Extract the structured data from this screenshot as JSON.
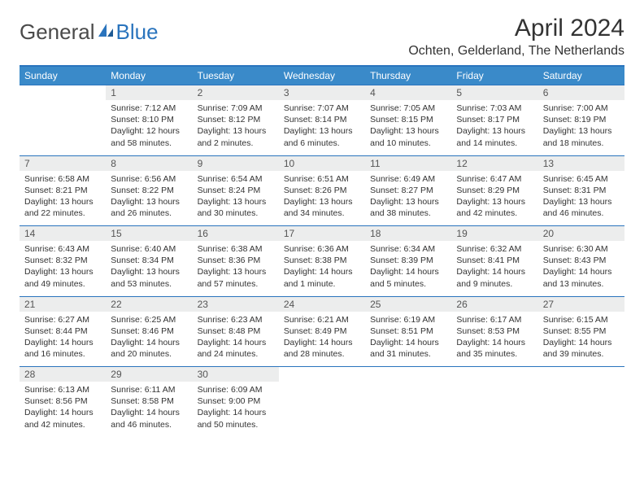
{
  "brand": {
    "part1": "General",
    "part2": "Blue"
  },
  "title": "April 2024",
  "location": "Ochten, Gelderland, The Netherlands",
  "colors": {
    "header_bg": "#3a8ac9",
    "accent": "#2a74bd",
    "daynum_bg": "#eceded",
    "text": "#333333"
  },
  "weekdays": [
    "Sunday",
    "Monday",
    "Tuesday",
    "Wednesday",
    "Thursday",
    "Friday",
    "Saturday"
  ],
  "weeks": [
    {
      "nums": [
        "",
        "1",
        "2",
        "3",
        "4",
        "5",
        "6"
      ],
      "cells": [
        null,
        {
          "sunrise": "Sunrise: 7:12 AM",
          "sunset": "Sunset: 8:10 PM",
          "day1": "Daylight: 12 hours",
          "day2": "and 58 minutes."
        },
        {
          "sunrise": "Sunrise: 7:09 AM",
          "sunset": "Sunset: 8:12 PM",
          "day1": "Daylight: 13 hours",
          "day2": "and 2 minutes."
        },
        {
          "sunrise": "Sunrise: 7:07 AM",
          "sunset": "Sunset: 8:14 PM",
          "day1": "Daylight: 13 hours",
          "day2": "and 6 minutes."
        },
        {
          "sunrise": "Sunrise: 7:05 AM",
          "sunset": "Sunset: 8:15 PM",
          "day1": "Daylight: 13 hours",
          "day2": "and 10 minutes."
        },
        {
          "sunrise": "Sunrise: 7:03 AM",
          "sunset": "Sunset: 8:17 PM",
          "day1": "Daylight: 13 hours",
          "day2": "and 14 minutes."
        },
        {
          "sunrise": "Sunrise: 7:00 AM",
          "sunset": "Sunset: 8:19 PM",
          "day1": "Daylight: 13 hours",
          "day2": "and 18 minutes."
        }
      ]
    },
    {
      "nums": [
        "7",
        "8",
        "9",
        "10",
        "11",
        "12",
        "13"
      ],
      "cells": [
        {
          "sunrise": "Sunrise: 6:58 AM",
          "sunset": "Sunset: 8:21 PM",
          "day1": "Daylight: 13 hours",
          "day2": "and 22 minutes."
        },
        {
          "sunrise": "Sunrise: 6:56 AM",
          "sunset": "Sunset: 8:22 PM",
          "day1": "Daylight: 13 hours",
          "day2": "and 26 minutes."
        },
        {
          "sunrise": "Sunrise: 6:54 AM",
          "sunset": "Sunset: 8:24 PM",
          "day1": "Daylight: 13 hours",
          "day2": "and 30 minutes."
        },
        {
          "sunrise": "Sunrise: 6:51 AM",
          "sunset": "Sunset: 8:26 PM",
          "day1": "Daylight: 13 hours",
          "day2": "and 34 minutes."
        },
        {
          "sunrise": "Sunrise: 6:49 AM",
          "sunset": "Sunset: 8:27 PM",
          "day1": "Daylight: 13 hours",
          "day2": "and 38 minutes."
        },
        {
          "sunrise": "Sunrise: 6:47 AM",
          "sunset": "Sunset: 8:29 PM",
          "day1": "Daylight: 13 hours",
          "day2": "and 42 minutes."
        },
        {
          "sunrise": "Sunrise: 6:45 AM",
          "sunset": "Sunset: 8:31 PM",
          "day1": "Daylight: 13 hours",
          "day2": "and 46 minutes."
        }
      ]
    },
    {
      "nums": [
        "14",
        "15",
        "16",
        "17",
        "18",
        "19",
        "20"
      ],
      "cells": [
        {
          "sunrise": "Sunrise: 6:43 AM",
          "sunset": "Sunset: 8:32 PM",
          "day1": "Daylight: 13 hours",
          "day2": "and 49 minutes."
        },
        {
          "sunrise": "Sunrise: 6:40 AM",
          "sunset": "Sunset: 8:34 PM",
          "day1": "Daylight: 13 hours",
          "day2": "and 53 minutes."
        },
        {
          "sunrise": "Sunrise: 6:38 AM",
          "sunset": "Sunset: 8:36 PM",
          "day1": "Daylight: 13 hours",
          "day2": "and 57 minutes."
        },
        {
          "sunrise": "Sunrise: 6:36 AM",
          "sunset": "Sunset: 8:38 PM",
          "day1": "Daylight: 14 hours",
          "day2": "and 1 minute."
        },
        {
          "sunrise": "Sunrise: 6:34 AM",
          "sunset": "Sunset: 8:39 PM",
          "day1": "Daylight: 14 hours",
          "day2": "and 5 minutes."
        },
        {
          "sunrise": "Sunrise: 6:32 AM",
          "sunset": "Sunset: 8:41 PM",
          "day1": "Daylight: 14 hours",
          "day2": "and 9 minutes."
        },
        {
          "sunrise": "Sunrise: 6:30 AM",
          "sunset": "Sunset: 8:43 PM",
          "day1": "Daylight: 14 hours",
          "day2": "and 13 minutes."
        }
      ]
    },
    {
      "nums": [
        "21",
        "22",
        "23",
        "24",
        "25",
        "26",
        "27"
      ],
      "cells": [
        {
          "sunrise": "Sunrise: 6:27 AM",
          "sunset": "Sunset: 8:44 PM",
          "day1": "Daylight: 14 hours",
          "day2": "and 16 minutes."
        },
        {
          "sunrise": "Sunrise: 6:25 AM",
          "sunset": "Sunset: 8:46 PM",
          "day1": "Daylight: 14 hours",
          "day2": "and 20 minutes."
        },
        {
          "sunrise": "Sunrise: 6:23 AM",
          "sunset": "Sunset: 8:48 PM",
          "day1": "Daylight: 14 hours",
          "day2": "and 24 minutes."
        },
        {
          "sunrise": "Sunrise: 6:21 AM",
          "sunset": "Sunset: 8:49 PM",
          "day1": "Daylight: 14 hours",
          "day2": "and 28 minutes."
        },
        {
          "sunrise": "Sunrise: 6:19 AM",
          "sunset": "Sunset: 8:51 PM",
          "day1": "Daylight: 14 hours",
          "day2": "and 31 minutes."
        },
        {
          "sunrise": "Sunrise: 6:17 AM",
          "sunset": "Sunset: 8:53 PM",
          "day1": "Daylight: 14 hours",
          "day2": "and 35 minutes."
        },
        {
          "sunrise": "Sunrise: 6:15 AM",
          "sunset": "Sunset: 8:55 PM",
          "day1": "Daylight: 14 hours",
          "day2": "and 39 minutes."
        }
      ]
    },
    {
      "nums": [
        "28",
        "29",
        "30",
        "",
        "",
        "",
        ""
      ],
      "cells": [
        {
          "sunrise": "Sunrise: 6:13 AM",
          "sunset": "Sunset: 8:56 PM",
          "day1": "Daylight: 14 hours",
          "day2": "and 42 minutes."
        },
        {
          "sunrise": "Sunrise: 6:11 AM",
          "sunset": "Sunset: 8:58 PM",
          "day1": "Daylight: 14 hours",
          "day2": "and 46 minutes."
        },
        {
          "sunrise": "Sunrise: 6:09 AM",
          "sunset": "Sunset: 9:00 PM",
          "day1": "Daylight: 14 hours",
          "day2": "and 50 minutes."
        },
        null,
        null,
        null,
        null
      ]
    }
  ]
}
